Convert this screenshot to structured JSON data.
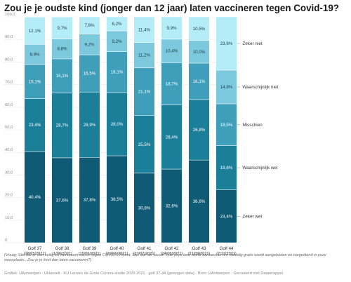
{
  "title": "Zou je je oudste kind (jonger dan 12 jaar) laten vaccineren tegen Covid-19?",
  "chart_data": {
    "type": "bar",
    "stacked": true,
    "ylim": [
      0,
      100
    ],
    "yticks": [
      0,
      10,
      20,
      30,
      40,
      50,
      60,
      70,
      80,
      90,
      100
    ],
    "ytick_labels": [
      "0",
      "10,0",
      "20,0",
      "30,0",
      "40,0",
      "50,0",
      "60,0",
      "70,0",
      "80,0",
      "90,0",
      "100,0"
    ],
    "grid": true,
    "legend": "right",
    "categories": [
      {
        "golf": "Golf 37",
        "date": "(18/05/2021)"
      },
      {
        "golf": "Golf 38",
        "date": "(1/06/2021)"
      },
      {
        "golf": "Golf 39",
        "date": "(15/06/2021)"
      },
      {
        "golf": "Golf 40",
        "date": "(29/06/2021)"
      },
      {
        "golf": "Golf 41",
        "date": "(27/07/2021)"
      },
      {
        "golf": "Golf 42",
        "date": "(24/08/2021)"
      },
      {
        "golf": "Golf 43",
        "date": "(21/09/2021)"
      },
      {
        "golf": "Golf 44",
        "date": "(7/12/2021)"
      }
    ],
    "series": [
      {
        "name": "Zeker wel",
        "color": "#0f5a74",
        "values": [
          40.4,
          37.6,
          37.8,
          38.5,
          30.8,
          32.6,
          36.6,
          23.4
        ],
        "labels": [
          "40,4%",
          "37,6%",
          "37,8%",
          "38,5%",
          "30,8%",
          "32,6%",
          "36,6%",
          "23,4%"
        ]
      },
      {
        "name": "Waarschijnlijk wel",
        "color": "#1b7f9a",
        "values": [
          23.4,
          28.7,
          28.9,
          28.0,
          25.5,
          28.4,
          26.8,
          19.6
        ],
        "labels": [
          "23,4%",
          "28,7%",
          "28,9%",
          "28,0%",
          "25,5%",
          "28,4%",
          "26,8%",
          "19,6%"
        ]
      },
      {
        "name": "Misschien",
        "color": "#3f9fbb",
        "values": [
          15.1,
          15.1,
          16.5,
          18.1,
          21.1,
          18.7,
          16.1,
          18.5
        ],
        "labels": [
          "15,1%",
          "15,1%",
          "16,5%",
          "18,1%",
          "21,1%",
          "18,7%",
          "16,1%",
          "18,5%"
        ]
      },
      {
        "name": "Waarschijnlijk niet",
        "color": "#7cc8dc",
        "values": [
          8.9,
          8.8,
          9.2,
          9.2,
          11.2,
          10.4,
          10.0,
          14.9
        ],
        "labels": [
          "8,9%",
          "8,8%",
          "9,2%",
          "9,2%",
          "11,2%",
          "10,4%",
          "10,0%",
          "14,9%"
        ]
      },
      {
        "name": "Zeker niet",
        "color": "#b4ecf7",
        "values": [
          12.1,
          9.7,
          7.6,
          6.2,
          11.4,
          9.9,
          10.5,
          23.6
        ],
        "labels": [
          "12,1%",
          "9,7%",
          "7,6%",
          "6,2%",
          "11,4%",
          "9,9%",
          "10,5%",
          "23,6%"
        ]
      }
    ]
  },
  "notes": {
    "question": "(Vraag: Stel dat er een veilig en werkzaam vaccin tegen COVID-19 komt. Stel dat het vaccin voor jouw kind wordt aanbevolen en volledig gratis wordt aangeboden en toegediend in jouw woonplaats., Zou je je kind dan laten vaccineren?)",
    "credit": "Grafiek: UAntwerpen · UHasselt · KU Leuven de Grote Corona-studie 2020-2021 · golf 37-44 (gewogen data) · Bron: UAntwerpen · Gecreëerd met Datawrapper"
  }
}
